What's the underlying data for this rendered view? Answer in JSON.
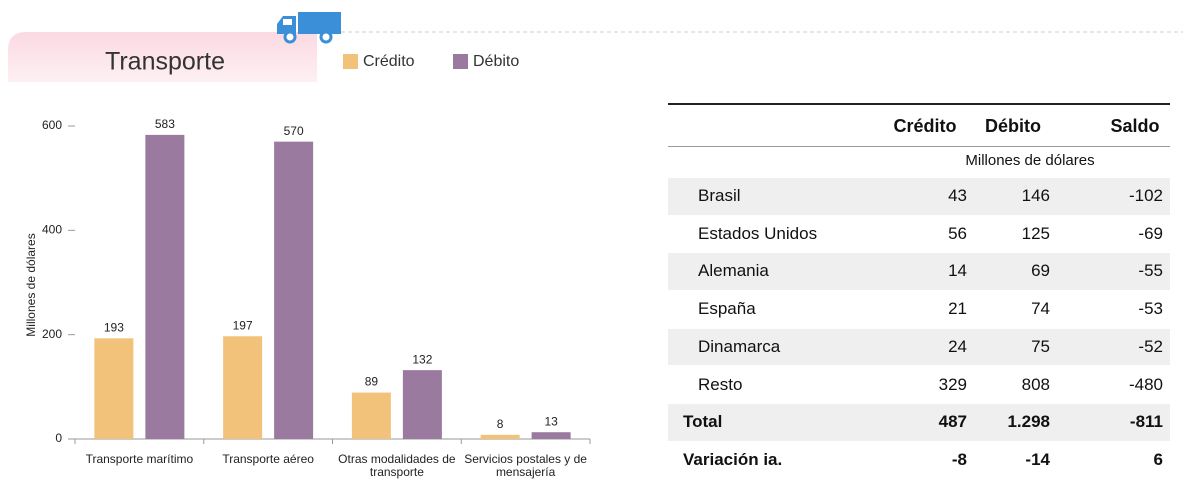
{
  "chart_data": {
    "type": "bar",
    "title": "Transporte",
    "ylabel": "Millones de dólares",
    "categories": [
      "Transporte marítimo",
      "Transporte aéreo",
      "Otras modalidades de transporte",
      "Servicios postales y de mensajería"
    ],
    "series": [
      {
        "name": "Crédito",
        "color": "#f2c27a",
        "values": [
          193,
          197,
          89,
          8
        ]
      },
      {
        "name": "Débito",
        "color": "#9a7a9e",
        "values": [
          583,
          570,
          132,
          13
        ]
      }
    ],
    "ylim": [
      0,
      600
    ],
    "yticks": [
      0,
      200,
      400,
      600
    ],
    "grid": false,
    "legend": "top"
  },
  "table": {
    "columns": [
      "Crédito",
      "Débito",
      "Saldo"
    ],
    "unit": "Millones de dólares",
    "rows": [
      [
        "Brasil",
        43,
        146,
        -102
      ],
      [
        "Estados Unidos",
        56,
        125,
        -69
      ],
      [
        "Alemania",
        14,
        69,
        -55
      ],
      [
        "España",
        21,
        74,
        -53
      ],
      [
        "Dinamarca",
        24,
        75,
        -52
      ],
      [
        "Resto",
        329,
        808,
        -480
      ]
    ],
    "summary_rows": [
      [
        "Total",
        487,
        "1.298",
        -811
      ],
      [
        "Variación ia.",
        -8,
        -14,
        6
      ]
    ]
  }
}
